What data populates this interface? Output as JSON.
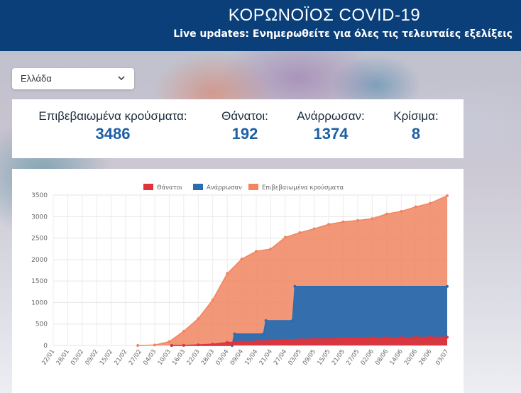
{
  "header": {
    "title": "ΚΟΡΩΝΟΪΟΣ COVID-19",
    "subtitle": "Live updates: Ενημερωθείτε για όλες τις τελευταίες εξελίξεις"
  },
  "country_select": {
    "value": "Ελλάδα",
    "icon": "chevron-down-icon"
  },
  "stats": [
    {
      "label": "Επιβεβαιωμένα κρούσματα:",
      "value": "3486"
    },
    {
      "label": "Θάνατοι:",
      "value": "192"
    },
    {
      "label": "Ανάρρωσαν:",
      "value": "1374"
    },
    {
      "label": "Κρίσιμα:",
      "value": "8"
    }
  ],
  "chart_data": {
    "type": "area",
    "legend_position": "top",
    "grid": true,
    "ylim": [
      0,
      3500
    ],
    "yticks": [
      0,
      500,
      1000,
      1500,
      2000,
      2500,
      3000,
      3500
    ],
    "xticks": [
      "22/01",
      "28/01",
      "03/02",
      "09/02",
      "15/02",
      "21/02",
      "27/02",
      "04/03",
      "10/03",
      "16/03",
      "22/03",
      "28/03",
      "03/04",
      "09/04",
      "15/04",
      "21/04",
      "27/04",
      "03/05",
      "09/05",
      "15/05",
      "21/05",
      "27/05",
      "02/06",
      "08/06",
      "14/06",
      "20/06",
      "26/06",
      "03/07"
    ],
    "series": [
      {
        "name": "Θάνατοι",
        "color": "#e2333a",
        "points": [
          [
            "11/03",
            0
          ],
          [
            "16/03",
            3
          ],
          [
            "22/03",
            15
          ],
          [
            "28/03",
            30
          ],
          [
            "03/04",
            70
          ],
          [
            "09/04",
            85
          ],
          [
            "15/04",
            100
          ],
          [
            "21/04",
            115
          ],
          [
            "27/04",
            125
          ],
          [
            "03/05",
            140
          ],
          [
            "09/05",
            150
          ],
          [
            "15/05",
            155
          ],
          [
            "21/05",
            168
          ],
          [
            "27/05",
            172
          ],
          [
            "02/06",
            179
          ],
          [
            "08/06",
            180
          ],
          [
            "14/06",
            183
          ],
          [
            "20/06",
            190
          ],
          [
            "26/06",
            191
          ],
          [
            "03/07",
            192
          ]
        ]
      },
      {
        "name": "Ανάρρωσαν",
        "color": "#2a6cb0",
        "points": [
          [
            "11/03",
            0
          ],
          [
            "05/04",
            0
          ],
          [
            "06/04",
            269
          ],
          [
            "18/04",
            269
          ],
          [
            "19/04",
            577
          ],
          [
            "30/04",
            577
          ],
          [
            "01/05",
            1374
          ],
          [
            "03/07",
            1374
          ]
        ]
      },
      {
        "name": "Επιβεβαιωμένα κρούσματα",
        "color": "#f08560",
        "points": [
          [
            "26/02",
            1
          ],
          [
            "04/03",
            10
          ],
          [
            "10/03",
            89
          ],
          [
            "16/03",
            331
          ],
          [
            "22/03",
            624
          ],
          [
            "28/03",
            1061
          ],
          [
            "03/04",
            1673
          ],
          [
            "09/04",
            2011
          ],
          [
            "15/04",
            2192
          ],
          [
            "21/04",
            2245
          ],
          [
            "27/04",
            2517
          ],
          [
            "03/05",
            2626
          ],
          [
            "09/05",
            2716
          ],
          [
            "15/05",
            2819
          ],
          [
            "21/05",
            2876
          ],
          [
            "27/05",
            2909
          ],
          [
            "02/06",
            2952
          ],
          [
            "08/06",
            3060
          ],
          [
            "14/06",
            3121
          ],
          [
            "20/06",
            3227
          ],
          [
            "26/06",
            3310
          ],
          [
            "03/07",
            3486
          ]
        ]
      }
    ]
  }
}
